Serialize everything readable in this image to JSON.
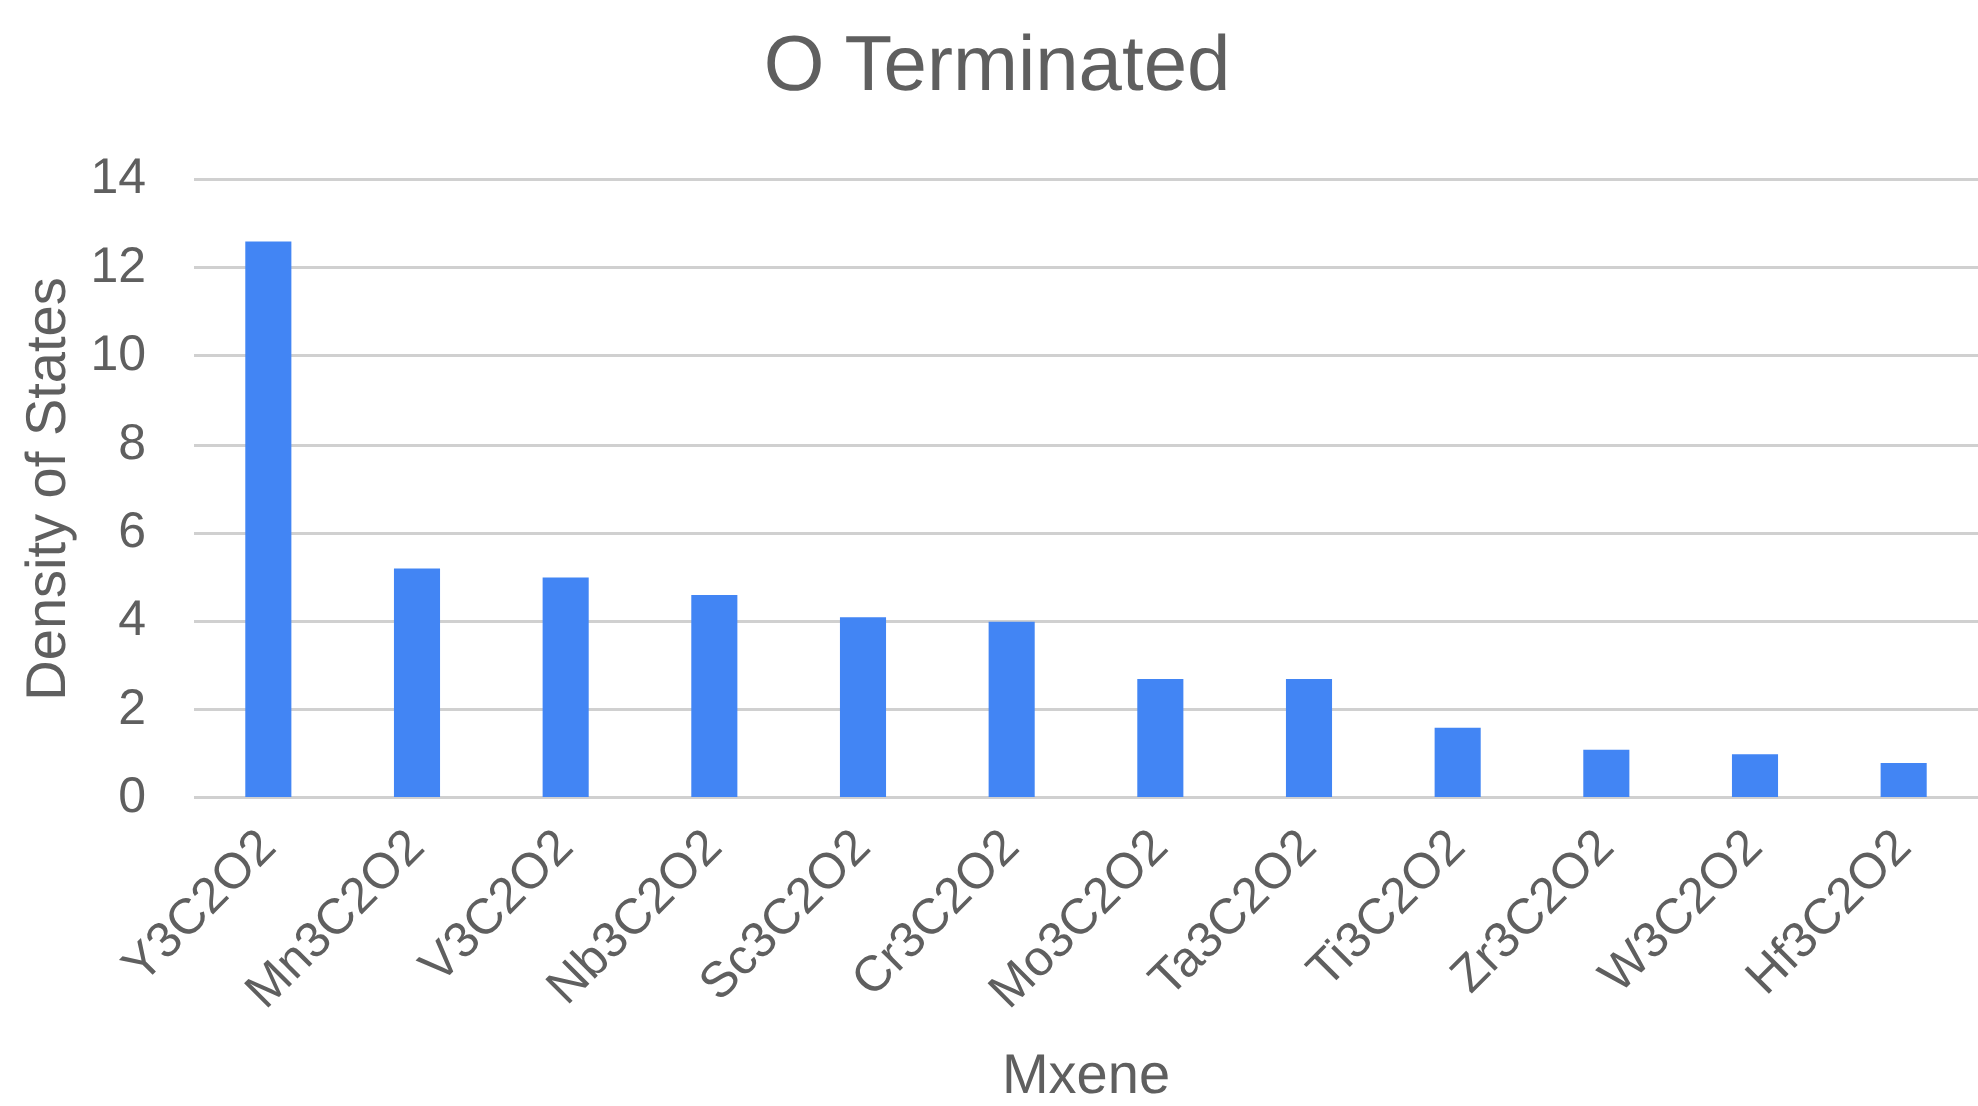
{
  "chart_data": {
    "type": "bar",
    "title": "O Terminated",
    "xlabel": "Mxene",
    "ylabel": "Density of States",
    "categories": [
      "Y3C2O2",
      "Mn3C2O2",
      "V3C2O2",
      "Nb3C2O2",
      "Sc3C2O2",
      "Cr3C2O2",
      "Mo3C2O2",
      "Ta3C2O2",
      "Ti3C2O2",
      "Zr3C2O2",
      "W3C2O2",
      "Hf3C2O2"
    ],
    "values": [
      12.6,
      5.2,
      5.0,
      4.6,
      4.1,
      4.0,
      2.7,
      2.7,
      1.6,
      1.1,
      1.0,
      0.8
    ],
    "color": "#4285f4",
    "ylim": [
      0,
      14
    ],
    "yticks": [
      0,
      2,
      4,
      6,
      8,
      10,
      12,
      14
    ],
    "grid": "y",
    "legend": false
  }
}
